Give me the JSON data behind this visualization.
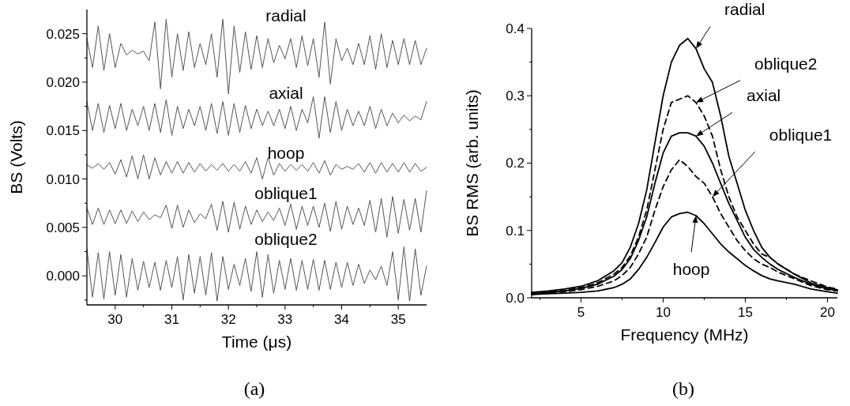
{
  "chart_data": [
    {
      "type": "line",
      "title": "(a)",
      "xlabel": "Time (μs)",
      "ylabel": "BS (Volts)",
      "xlim": [
        29.5,
        35.5
      ],
      "ylim": [
        -0.003,
        0.0275
      ],
      "xticks": [
        30,
        {
          "value": 30.5,
          "label": null
        },
        31,
        {
          "value": 31.5,
          "label": null
        },
        32,
        {
          "value": 32.5,
          "label": null
        },
        33,
        {
          "value": 33.5,
          "label": null
        },
        34,
        {
          "value": 34.5,
          "label": null
        },
        35
      ],
      "yticks": [
        {
          "value": -0.0025,
          "label": null
        },
        {
          "value": 0,
          "label": "0.000"
        },
        {
          "value": 0.0025,
          "label": null
        },
        {
          "value": 0.005,
          "label": "0.005"
        },
        {
          "value": 0.0075,
          "label": null
        },
        {
          "value": 0.01,
          "label": "0.010"
        },
        {
          "value": 0.0125,
          "label": null
        },
        {
          "value": 0.015,
          "label": "0.015"
        },
        {
          "value": 0.0175,
          "label": null
        },
        {
          "value": 0.02,
          "label": "0.020"
        },
        {
          "value": 0.0225,
          "label": null
        },
        {
          "value": 0.025,
          "label": "0.025"
        }
      ],
      "grid": false,
      "marker": "none",
      "x": [
        29.5,
        29.6,
        29.7,
        29.8,
        29.9,
        30.0,
        30.1,
        30.2,
        30.3,
        30.4,
        30.5,
        30.6,
        30.7,
        30.8,
        30.9,
        31.0,
        31.1,
        31.2,
        31.3,
        31.4,
        31.5,
        31.6,
        31.7,
        31.8,
        31.9,
        32.0,
        32.1,
        32.2,
        32.3,
        32.4,
        32.5,
        32.6,
        32.7,
        32.8,
        32.9,
        33.0,
        33.1,
        33.2,
        33.3,
        33.4,
        33.5,
        33.6,
        33.7,
        33.8,
        33.9,
        34.0,
        34.1,
        34.2,
        34.3,
        34.4,
        34.5,
        34.6,
        34.7,
        34.8,
        34.9,
        35.0,
        35.1,
        35.2,
        35.3,
        35.4,
        35.5
      ],
      "series": [
        {
          "name": "radial",
          "color": "#555555",
          "line_style": "solid",
          "values": [
            0.0245,
            0.0215,
            0.0258,
            0.0212,
            0.025,
            0.0215,
            0.024,
            0.0228,
            0.0233,
            0.0229,
            0.0232,
            0.0222,
            0.0262,
            0.0193,
            0.0265,
            0.0205,
            0.025,
            0.0212,
            0.0252,
            0.0215,
            0.024,
            0.0218,
            0.025,
            0.0205,
            0.0265,
            0.0188,
            0.0258,
            0.021,
            0.0252,
            0.0213,
            0.0248,
            0.0215,
            0.0245,
            0.022,
            0.0238,
            0.0224,
            0.0245,
            0.0215,
            0.0248,
            0.0217,
            0.0245,
            0.0205,
            0.0262,
            0.0198,
            0.0245,
            0.0222,
            0.0235,
            0.0218,
            0.024,
            0.0218,
            0.0248,
            0.0213,
            0.025,
            0.0215,
            0.0243,
            0.0218,
            0.0245,
            0.0218,
            0.0243,
            0.0218,
            0.0235
          ]
        },
        {
          "name": "axial",
          "color": "#555555",
          "line_style": "solid",
          "values": [
            0.018,
            0.015,
            0.0178,
            0.0148,
            0.0176,
            0.0152,
            0.0178,
            0.015,
            0.0172,
            0.0155,
            0.0175,
            0.015,
            0.0178,
            0.0148,
            0.0182,
            0.0145,
            0.0175,
            0.0152,
            0.0172,
            0.0155,
            0.0175,
            0.015,
            0.0178,
            0.0147,
            0.018,
            0.0145,
            0.0178,
            0.0148,
            0.0176,
            0.0152,
            0.0172,
            0.0155,
            0.017,
            0.0155,
            0.0172,
            0.0152,
            0.0175,
            0.015,
            0.0172,
            0.0158,
            0.0185,
            0.0142,
            0.0185,
            0.0148,
            0.018,
            0.015,
            0.0172,
            0.0155,
            0.017,
            0.0155,
            0.0175,
            0.0152,
            0.0172,
            0.0155,
            0.0168,
            0.0158,
            0.0166,
            0.016,
            0.0165,
            0.0161,
            0.018
          ]
        },
        {
          "name": "hoop",
          "color": "#555555",
          "line_style": "solid",
          "values": [
            0.0115,
            0.0111,
            0.0116,
            0.011,
            0.0117,
            0.0105,
            0.012,
            0.0102,
            0.0124,
            0.01,
            0.0125,
            0.01,
            0.0122,
            0.0104,
            0.0118,
            0.0106,
            0.0118,
            0.0106,
            0.0117,
            0.0107,
            0.0116,
            0.0108,
            0.0115,
            0.0109,
            0.0116,
            0.0108,
            0.0115,
            0.0108,
            0.0118,
            0.0106,
            0.0122,
            0.01,
            0.0122,
            0.0104,
            0.0116,
            0.0108,
            0.0115,
            0.0109,
            0.0115,
            0.0108,
            0.0117,
            0.0106,
            0.0119,
            0.0104,
            0.0115,
            0.011,
            0.0113,
            0.011,
            0.0116,
            0.0107,
            0.0117,
            0.0106,
            0.0117,
            0.0107,
            0.0116,
            0.0107,
            0.0117,
            0.0107,
            0.0116,
            0.0108,
            0.0112
          ]
        },
        {
          "name": "oblique1",
          "color": "#555555",
          "line_style": "solid",
          "values": [
            0.007,
            0.0053,
            0.007,
            0.0053,
            0.0068,
            0.0054,
            0.0068,
            0.0054,
            0.0067,
            0.0056,
            0.0066,
            0.0058,
            0.0063,
            0.006,
            0.0073,
            0.0049,
            0.0073,
            0.005,
            0.0068,
            0.0055,
            0.0064,
            0.0059,
            0.0074,
            0.0047,
            0.0077,
            0.0045,
            0.0076,
            0.0048,
            0.0072,
            0.0053,
            0.0068,
            0.0056,
            0.0066,
            0.0057,
            0.007,
            0.0052,
            0.0074,
            0.0048,
            0.0072,
            0.0052,
            0.0072,
            0.005,
            0.0075,
            0.0046,
            0.0077,
            0.0048,
            0.0072,
            0.0053,
            0.007,
            0.0052,
            0.0078,
            0.0045,
            0.008,
            0.004,
            0.0082,
            0.0044,
            0.0079,
            0.0047,
            0.008,
            0.0045,
            0.0088
          ]
        },
        {
          "name": "oblique2",
          "color": "#555555",
          "line_style": "solid",
          "values": [
            0.0028,
            -0.0022,
            0.0024,
            -0.0024,
            0.0025,
            -0.002,
            0.0022,
            -0.0022,
            0.0018,
            -0.0015,
            0.0015,
            -0.0012,
            0.0014,
            -0.0015,
            0.0016,
            -0.0012,
            0.002,
            -0.0025,
            0.0022,
            -0.0018,
            0.002,
            -0.002,
            0.0024,
            -0.0026,
            0.002,
            -0.0014,
            0.0012,
            -0.001,
            0.0018,
            -0.0016,
            0.0025,
            -0.0022,
            0.0022,
            -0.0018,
            0.0016,
            -0.0014,
            0.0018,
            -0.0015,
            0.0016,
            -0.0014,
            0.0017,
            -0.0015,
            0.0016,
            -0.0014,
            0.0014,
            -0.0012,
            0.0014,
            -0.001,
            0.0012,
            -0.0008,
            0.0006,
            -0.0004,
            0.001,
            -0.001,
            0.0025,
            -0.0025,
            0.003,
            -0.0026,
            0.0028,
            -0.002,
            0.001
          ]
        }
      ]
    },
    {
      "type": "line",
      "title": "(b)",
      "xlabel": "Frequency (MHz)",
      "ylabel": "BS RMS (arb. units)",
      "xlim": [
        2,
        20.6
      ],
      "ylim": [
        0,
        0.4
      ],
      "xticks": [
        {
          "value": 2.5,
          "label": null
        },
        5,
        {
          "value": 7.5,
          "label": null
        },
        10,
        {
          "value": 12.5,
          "label": null
        },
        15,
        {
          "value": 17.5,
          "label": null
        },
        20
      ],
      "yticks": [
        {
          "value": 0,
          "label": "0.0"
        },
        {
          "value": 0.05,
          "label": null
        },
        0.1,
        {
          "value": 0.15,
          "label": null
        },
        0.2,
        {
          "value": 0.25,
          "label": null
        },
        0.3,
        {
          "value": 0.35,
          "label": null
        },
        0.4
      ],
      "grid": false,
      "marker": "none",
      "x": [
        2,
        3,
        4,
        5,
        6,
        7,
        7.5,
        8,
        8.5,
        9,
        9.5,
        10,
        10.5,
        11,
        11.5,
        12,
        12.5,
        13,
        13.5,
        14,
        14.5,
        15,
        15.5,
        16,
        16.5,
        17,
        18,
        19,
        20,
        20.6
      ],
      "series": [
        {
          "name": "radial",
          "color": "#000000",
          "line_style": "solid",
          "values": [
            0.008,
            0.01,
            0.013,
            0.017,
            0.025,
            0.04,
            0.052,
            0.075,
            0.11,
            0.16,
            0.23,
            0.3,
            0.35,
            0.375,
            0.385,
            0.37,
            0.34,
            0.32,
            0.27,
            0.21,
            0.17,
            0.13,
            0.1,
            0.075,
            0.06,
            0.05,
            0.035,
            0.022,
            0.015,
            0.012
          ]
        },
        {
          "name": "oblique2",
          "color": "#000000",
          "line_style": "dashed",
          "values": [
            0.007,
            0.009,
            0.011,
            0.015,
            0.022,
            0.035,
            0.045,
            0.062,
            0.09,
            0.13,
            0.19,
            0.25,
            0.29,
            0.295,
            0.3,
            0.29,
            0.27,
            0.24,
            0.19,
            0.15,
            0.12,
            0.1,
            0.08,
            0.065,
            0.06,
            0.05,
            0.035,
            0.025,
            0.016,
            0.013
          ]
        },
        {
          "name": "axial",
          "color": "#000000",
          "line_style": "solid",
          "values": [
            0.006,
            0.008,
            0.01,
            0.014,
            0.02,
            0.032,
            0.042,
            0.058,
            0.085,
            0.12,
            0.17,
            0.215,
            0.24,
            0.245,
            0.245,
            0.24,
            0.225,
            0.2,
            0.17,
            0.14,
            0.115,
            0.09,
            0.072,
            0.06,
            0.05,
            0.042,
            0.03,
            0.02,
            0.013,
            0.011
          ]
        },
        {
          "name": "oblique1",
          "color": "#000000",
          "line_style": "dashed",
          "values": [
            0.005,
            0.007,
            0.009,
            0.012,
            0.017,
            0.025,
            0.033,
            0.045,
            0.065,
            0.09,
            0.13,
            0.165,
            0.19,
            0.205,
            0.195,
            0.18,
            0.17,
            0.15,
            0.125,
            0.105,
            0.085,
            0.07,
            0.058,
            0.05,
            0.045,
            0.038,
            0.028,
            0.018,
            0.012,
            0.01
          ]
        },
        {
          "name": "hoop",
          "color": "#000000",
          "line_style": "solid",
          "values": [
            0.005,
            0.006,
            0.007,
            0.008,
            0.01,
            0.015,
            0.02,
            0.028,
            0.042,
            0.06,
            0.082,
            0.105,
            0.12,
            0.125,
            0.127,
            0.122,
            0.11,
            0.095,
            0.08,
            0.068,
            0.058,
            0.048,
            0.04,
            0.033,
            0.028,
            0.025,
            0.02,
            0.013,
            0.009,
            0.007
          ]
        }
      ]
    }
  ]
}
